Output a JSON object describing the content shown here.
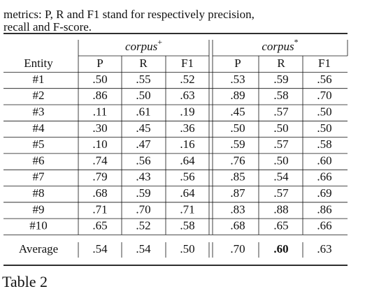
{
  "caption": {
    "lines": [
      "metrics: P, R and F1 stand for respectively precision,",
      "recall and F-score."
    ]
  },
  "table": {
    "groups": [
      {
        "name": "corpus",
        "sup": "+"
      },
      {
        "name": "corpus",
        "sup": "*"
      }
    ],
    "columns": [
      "Entity",
      "P",
      "R",
      "F1",
      "P",
      "R",
      "F1"
    ],
    "rows": [
      [
        "#1",
        ".50",
        ".55",
        ".52",
        ".53",
        ".59",
        ".56"
      ],
      [
        "#2",
        ".86",
        ".50",
        ".63",
        ".89",
        ".58",
        ".70"
      ],
      [
        "#3",
        ".11",
        ".61",
        ".19",
        ".45",
        ".57",
        ".50"
      ],
      [
        "#4",
        ".30",
        ".45",
        ".36",
        ".50",
        ".50",
        ".50"
      ],
      [
        "#5",
        ".10",
        ".47",
        ".16",
        ".59",
        ".57",
        ".58"
      ],
      [
        "#6",
        ".74",
        ".56",
        ".64",
        ".76",
        ".50",
        ".60"
      ],
      [
        "#7",
        ".79",
        ".43",
        ".56",
        ".85",
        ".54",
        ".66"
      ],
      [
        "#8",
        ".68",
        ".59",
        ".64",
        ".87",
        ".57",
        ".69"
      ],
      [
        "#9",
        ".71",
        ".70",
        ".71",
        ".83",
        ".88",
        ".86"
      ],
      [
        "#10",
        ".65",
        ".52",
        ".58",
        ".68",
        ".65",
        ".66"
      ]
    ],
    "average": [
      "Average",
      ".54",
      ".54",
      ".50",
      ".70",
      ".60",
      ".63"
    ]
  },
  "footer": {
    "label": "Table 2"
  }
}
